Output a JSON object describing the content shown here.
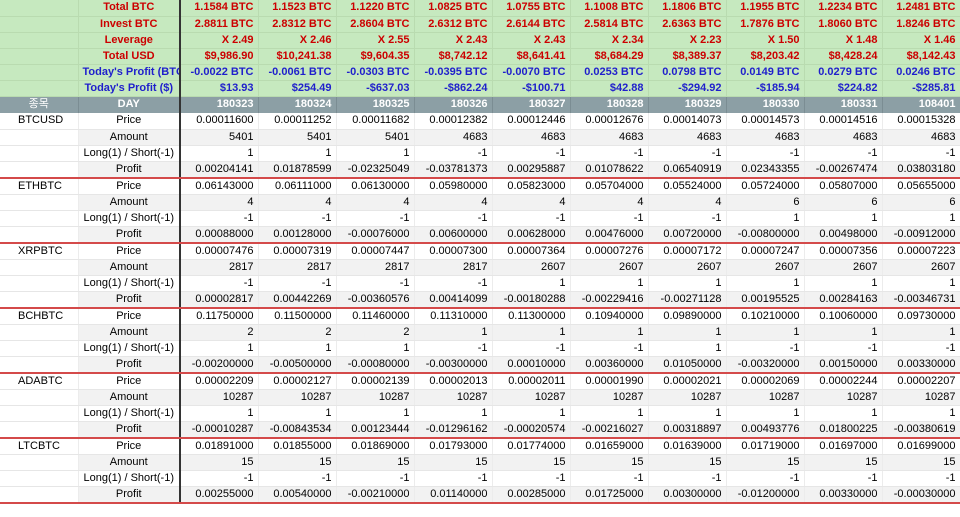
{
  "header": {
    "col0": "종목",
    "col1": "DAY",
    "days": [
      "180323",
      "180324",
      "180325",
      "180326",
      "180327",
      "180328",
      "180329",
      "180330",
      "180331",
      "108401"
    ]
  },
  "summary": [
    {
      "label": "Total BTC",
      "color": "red",
      "values": [
        "1.1584 BTC",
        "1.1523 BTC",
        "1.1220 BTC",
        "1.0825 BTC",
        "1.0755 BTC",
        "1.1008 BTC",
        "1.1806 BTC",
        "1.1955 BTC",
        "1.2234 BTC",
        "1.2481 BTC"
      ]
    },
    {
      "label": "Invest BTC",
      "color": "red",
      "values": [
        "2.8811 BTC",
        "2.8312 BTC",
        "2.8604 BTC",
        "2.6312 BTC",
        "2.6144 BTC",
        "2.5814 BTC",
        "2.6363 BTC",
        "1.7876 BTC",
        "1.8060 BTC",
        "1.8246 BTC"
      ]
    },
    {
      "label": "Leverage",
      "color": "red",
      "values": [
        "X 2.49",
        "X 2.46",
        "X 2.55",
        "X 2.43",
        "X 2.43",
        "X 2.34",
        "X 2.23",
        "X 1.50",
        "X 1.48",
        "X 1.46"
      ]
    },
    {
      "label": "Total USD",
      "color": "red",
      "values": [
        "$9,986.90",
        "$10,241.38",
        "$9,604.35",
        "$8,742.12",
        "$8,641.41",
        "$8,684.29",
        "$8,389.37",
        "$8,203.42",
        "$8,428.24",
        "$8,142.43"
      ]
    },
    {
      "label": "Today's Profit (BTC)",
      "color": "blue",
      "values": [
        "-0.0022 BTC",
        "-0.0061 BTC",
        "-0.0303 BTC",
        "-0.0395 BTC",
        "-0.0070 BTC",
        "0.0253 BTC",
        "0.0798 BTC",
        "0.0149 BTC",
        "0.0279 BTC",
        "0.0246 BTC"
      ]
    },
    {
      "label": "Today's Profit ($)",
      "color": "blue",
      "values": [
        "$13.93",
        "$254.49",
        "-$637.03",
        "-$862.24",
        "-$100.71",
        "$42.88",
        "-$294.92",
        "-$185.94",
        "$224.82",
        "-$285.81"
      ]
    }
  ],
  "coins": [
    {
      "symbol": "BTCUSD",
      "rows": [
        {
          "label": "Price",
          "values": [
            "0.00011600",
            "0.00011252",
            "0.00011682",
            "0.00012382",
            "0.00012446",
            "0.00012676",
            "0.00014073",
            "0.00014573",
            "0.00014516",
            "0.00015328"
          ]
        },
        {
          "label": "Amount",
          "values": [
            "5401",
            "5401",
            "5401",
            "4683",
            "4683",
            "4683",
            "4683",
            "4683",
            "4683",
            "4683"
          ]
        },
        {
          "label": "Long(1) / Short(-1)",
          "values": [
            "1",
            "1",
            "1",
            "-1",
            "-1",
            "-1",
            "-1",
            "-1",
            "-1",
            "-1"
          ]
        },
        {
          "label": "Profit",
          "values": [
            "0.00204141",
            "0.01878599",
            "-0.02325049",
            "-0.03781373",
            "0.00295887",
            "0.01078622",
            "0.06540919",
            "0.02343355",
            "-0.00267474",
            "0.03803180"
          ]
        }
      ]
    },
    {
      "symbol": "ETHBTC",
      "rows": [
        {
          "label": "Price",
          "values": [
            "0.06143000",
            "0.06111000",
            "0.06130000",
            "0.05980000",
            "0.05823000",
            "0.05704000",
            "0.05524000",
            "0.05724000",
            "0.05807000",
            "0.05655000"
          ]
        },
        {
          "label": "Amount",
          "values": [
            "4",
            "4",
            "4",
            "4",
            "4",
            "4",
            "4",
            "6",
            "6",
            "6"
          ]
        },
        {
          "label": "Long(1) / Short(-1)",
          "values": [
            "-1",
            "-1",
            "-1",
            "-1",
            "-1",
            "-1",
            "-1",
            "1",
            "1",
            "1"
          ]
        },
        {
          "label": "Profit",
          "values": [
            "0.00088000",
            "0.00128000",
            "-0.00076000",
            "0.00600000",
            "0.00628000",
            "0.00476000",
            "0.00720000",
            "-0.00800000",
            "0.00498000",
            "-0.00912000"
          ]
        }
      ]
    },
    {
      "symbol": "XRPBTC",
      "rows": [
        {
          "label": "Price",
          "values": [
            "0.00007476",
            "0.00007319",
            "0.00007447",
            "0.00007300",
            "0.00007364",
            "0.00007276",
            "0.00007172",
            "0.00007247",
            "0.00007356",
            "0.00007223"
          ]
        },
        {
          "label": "Amount",
          "values": [
            "2817",
            "2817",
            "2817",
            "2817",
            "2607",
            "2607",
            "2607",
            "2607",
            "2607",
            "2607"
          ]
        },
        {
          "label": "Long(1) / Short(-1)",
          "values": [
            "-1",
            "-1",
            "-1",
            "-1",
            "1",
            "1",
            "1",
            "1",
            "1",
            "1"
          ]
        },
        {
          "label": "Profit",
          "values": [
            "0.00002817",
            "0.00442269",
            "-0.00360576",
            "0.00414099",
            "-0.00180288",
            "-0.00229416",
            "-0.00271128",
            "0.00195525",
            "0.00284163",
            "-0.00346731"
          ]
        }
      ]
    },
    {
      "symbol": "BCHBTC",
      "rows": [
        {
          "label": "Price",
          "values": [
            "0.11750000",
            "0.11500000",
            "0.11460000",
            "0.11310000",
            "0.11300000",
            "0.10940000",
            "0.09890000",
            "0.10210000",
            "0.10060000",
            "0.09730000"
          ]
        },
        {
          "label": "Amount",
          "values": [
            "2",
            "2",
            "2",
            "1",
            "1",
            "1",
            "1",
            "1",
            "1",
            "1"
          ]
        },
        {
          "label": "Long(1) / Short(-1)",
          "values": [
            "1",
            "1",
            "1",
            "-1",
            "-1",
            "-1",
            "1",
            "-1",
            "-1",
            "-1"
          ]
        },
        {
          "label": "Profit",
          "values": [
            "-0.00200000",
            "-0.00500000",
            "-0.00080000",
            "-0.00300000",
            "0.00010000",
            "0.00360000",
            "0.01050000",
            "-0.00320000",
            "0.00150000",
            "0.00330000"
          ]
        }
      ]
    },
    {
      "symbol": "ADABTC",
      "rows": [
        {
          "label": "Price",
          "values": [
            "0.00002209",
            "0.00002127",
            "0.00002139",
            "0.00002013",
            "0.00002011",
            "0.00001990",
            "0.00002021",
            "0.00002069",
            "0.00002244",
            "0.00002207"
          ]
        },
        {
          "label": "Amount",
          "values": [
            "10287",
            "10287",
            "10287",
            "10287",
            "10287",
            "10287",
            "10287",
            "10287",
            "10287",
            "10287"
          ]
        },
        {
          "label": "Long(1) / Short(-1)",
          "values": [
            "1",
            "1",
            "1",
            "1",
            "1",
            "1",
            "1",
            "1",
            "1",
            "1"
          ]
        },
        {
          "label": "Profit",
          "values": [
            "-0.00010287",
            "-0.00843534",
            "0.00123444",
            "-0.01296162",
            "-0.00020574",
            "-0.00216027",
            "0.00318897",
            "0.00493776",
            "0.01800225",
            "-0.00380619"
          ]
        }
      ]
    },
    {
      "symbol": "LTCBTC",
      "rows": [
        {
          "label": "Price",
          "values": [
            "0.01891000",
            "0.01855000",
            "0.01869000",
            "0.01793000",
            "0.01774000",
            "0.01659000",
            "0.01639000",
            "0.01719000",
            "0.01697000",
            "0.01699000"
          ]
        },
        {
          "label": "Amount",
          "values": [
            "15",
            "15",
            "15",
            "15",
            "15",
            "15",
            "15",
            "15",
            "15",
            "15"
          ]
        },
        {
          "label": "Long(1) / Short(-1)",
          "values": [
            "-1",
            "-1",
            "-1",
            "-1",
            "-1",
            "-1",
            "-1",
            "-1",
            "-1",
            "-1"
          ]
        },
        {
          "label": "Profit",
          "values": [
            "0.00255000",
            "0.00540000",
            "-0.00210000",
            "0.01140000",
            "0.00285000",
            "0.01725000",
            "0.00300000",
            "-0.01200000",
            "0.00330000",
            "-0.00030000"
          ]
        }
      ]
    }
  ]
}
